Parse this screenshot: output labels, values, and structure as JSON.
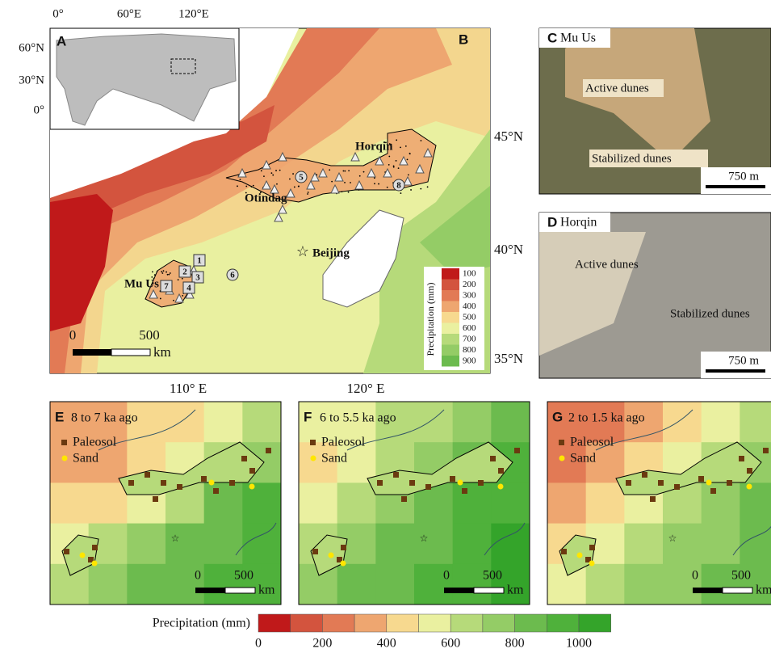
{
  "panel_a": {
    "label": "A",
    "lon_ticks": [
      "0°",
      "60°E",
      "120°E"
    ],
    "lat_ticks": [
      "60°N",
      "30°N",
      "0°"
    ]
  },
  "panel_b": {
    "label": "B",
    "lat_ticks": [
      "45°N",
      "40°N",
      "35°N"
    ],
    "lon_ticks": [
      "110° E",
      "120° E"
    ],
    "places": [
      "Horqin",
      "Otindag",
      "Mu Us",
      "Beijing"
    ],
    "sites": [
      "1",
      "2",
      "3",
      "4",
      "5",
      "6",
      "7",
      "8"
    ],
    "scale": {
      "zero": "0",
      "max": "500",
      "unit": "km"
    },
    "legend": {
      "title": "Precipitation (mm)",
      "labels": [
        "100",
        "200",
        "300",
        "400",
        "500",
        "600",
        "700",
        "800",
        "900"
      ]
    }
  },
  "panel_c": {
    "label": "C",
    "site": "Mu Us",
    "annotations": [
      "Active dunes",
      "Stabilized dunes"
    ],
    "scale": "750 m"
  },
  "panel_d": {
    "label": "D",
    "site": "Horqin",
    "annotations": [
      "Active dunes",
      "Stabilized dunes"
    ],
    "scale": "750 m"
  },
  "time_panels": [
    {
      "label": "E",
      "period": "8 to 7 ka ago"
    },
    {
      "label": "F",
      "period": "6 to 5.5 ka ago"
    },
    {
      "label": "G",
      "period": "2 to 1.5 ka ago"
    }
  ],
  "time_legend": [
    "Paleosol",
    "Sand"
  ],
  "time_scale": {
    "zero": "0",
    "max": "500",
    "unit": "km"
  },
  "colorbar": {
    "title": "Precipitation  (mm)",
    "tick_labels": [
      "0",
      "200",
      "400",
      "600",
      "800",
      "1000"
    ]
  }
}
